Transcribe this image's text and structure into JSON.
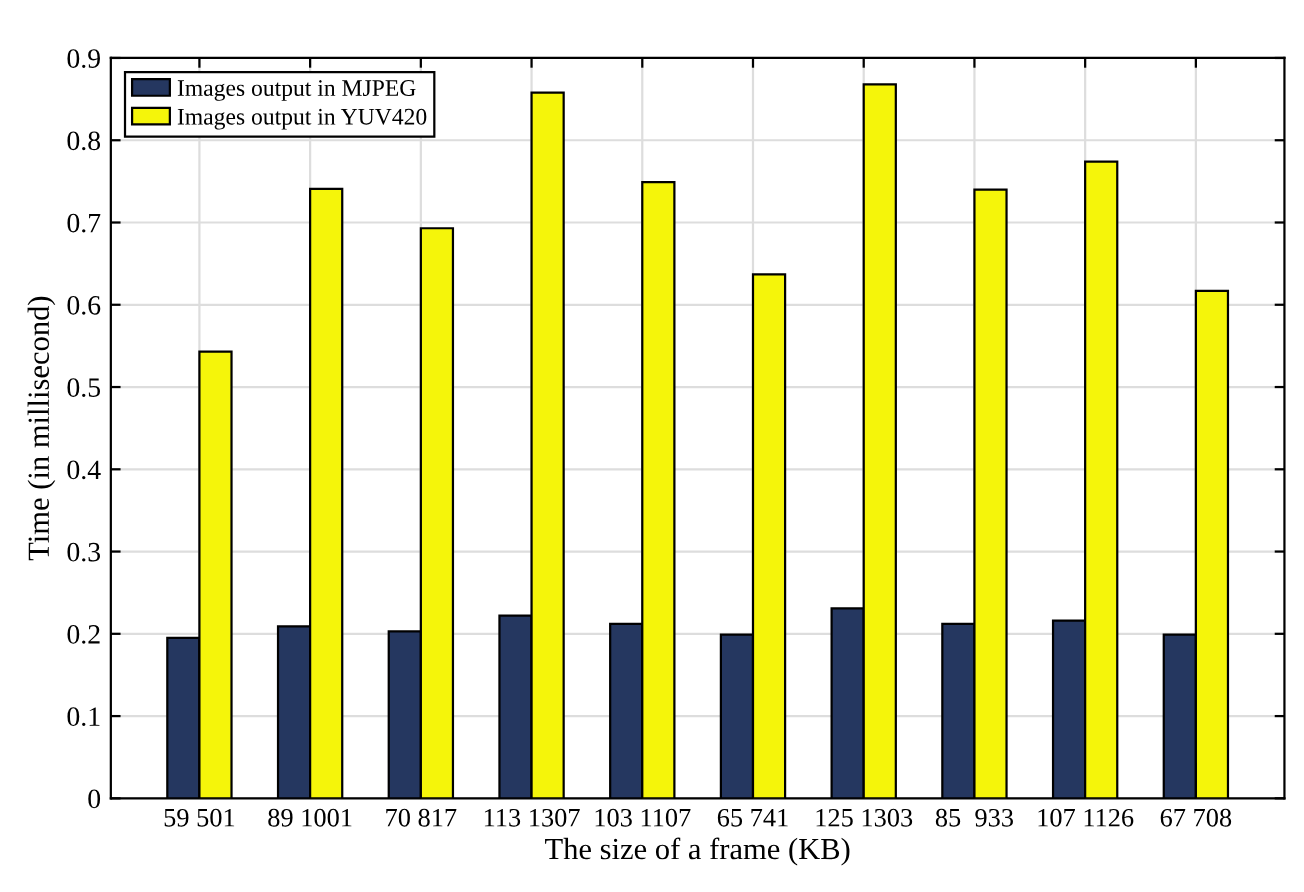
{
  "chart_data": {
    "type": "bar",
    "xlabel": "The size of a frame (KB)",
    "ylabel": "Time (in millisecond)",
    "categories": [
      "59 501",
      "89 1001",
      "70 817",
      "113 1307",
      "103 1107",
      "65 741",
      "125 1303",
      "85  933",
      "107 1126",
      "67 708"
    ],
    "series": [
      {
        "name": "Images output in MJPEG",
        "color": "#253760",
        "values": [
          0.195,
          0.209,
          0.203,
          0.222,
          0.212,
          0.199,
          0.231,
          0.212,
          0.216,
          0.199
        ]
      },
      {
        "name": "Images output in YUV420",
        "color": "#f5f50a",
        "values": [
          0.543,
          0.741,
          0.693,
          0.858,
          0.749,
          0.637,
          0.868,
          0.74,
          0.774,
          0.617
        ]
      }
    ],
    "ylim": [
      0,
      0.9
    ],
    "yticks": [
      0,
      0.1,
      0.2,
      0.3,
      0.4,
      0.5,
      0.6,
      0.7,
      0.8,
      0.9
    ],
    "grid": true,
    "legend": "top left"
  }
}
